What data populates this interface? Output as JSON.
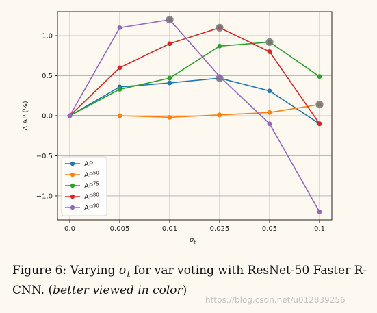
{
  "chart_data": {
    "type": "line",
    "categories": [
      "0.0",
      "0.005",
      "0.01",
      "0.025",
      "0.05",
      "0.1"
    ],
    "xlabel": "σ",
    "xlabel_sub": "t",
    "ylabel": "Δ AP (%)",
    "ylim": [
      -1.3,
      1.3
    ],
    "yticks": [
      "−1.0",
      "−0.5",
      "0.0",
      "0.5",
      "1.0"
    ],
    "ytick_values": [
      -1.0,
      -0.5,
      0.0,
      0.5,
      1.0
    ],
    "grid": true,
    "legend_position": "lower-left",
    "series": [
      {
        "name": "AP",
        "sup": "",
        "color": "#1f77b4",
        "values": [
          0.0,
          0.36,
          0.41,
          0.47,
          0.31,
          -0.1
        ],
        "highlight": 3
      },
      {
        "name": "AP",
        "sup": "50",
        "color": "#ff7f0e",
        "values": [
          0.0,
          0.0,
          -0.02,
          0.01,
          0.04,
          0.14
        ],
        "highlight": 5
      },
      {
        "name": "AP",
        "sup": "75",
        "color": "#2ca02c",
        "values": [
          0.0,
          0.33,
          0.47,
          0.87,
          0.92,
          0.49
        ],
        "highlight": 4
      },
      {
        "name": "AP",
        "sup": "80",
        "color": "#d62728",
        "values": [
          0.0,
          0.6,
          0.9,
          1.1,
          0.8,
          -0.1
        ],
        "highlight": 3
      },
      {
        "name": "AP",
        "sup": "90",
        "color": "#9467bd",
        "values": [
          0.0,
          1.1,
          1.2,
          0.49,
          -0.1,
          -1.2
        ],
        "highlight": 2
      }
    ]
  },
  "caption": {
    "prefix": "Figure 6: Varying ",
    "sigma": "σ",
    "sub": "t",
    "middle": " for var voting with ResNet-50 Faster R-CNN. (",
    "italic": "better viewed in color",
    "suffix": ")"
  },
  "watermark": "https://blog.csdn.net/u012839256"
}
